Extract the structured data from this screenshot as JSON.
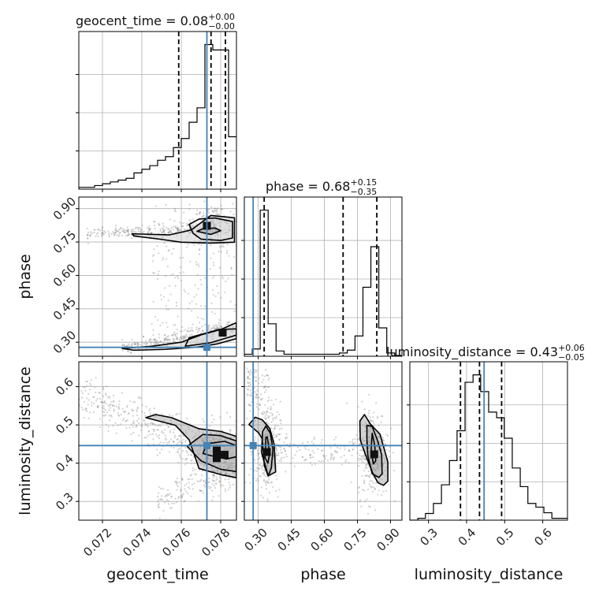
{
  "chart_data": {
    "type": "corner",
    "parameters": [
      "geocent_time",
      "phase",
      "luminosity_distance"
    ],
    "axis_labels": {
      "geocent_time": "geocent_time",
      "phase": "phase",
      "luminosity_distance": "luminosity_distance"
    },
    "ranges": {
      "geocent_time": [
        0.0708,
        0.0788
      ],
      "phase": [
        0.237,
        0.952
      ],
      "luminosity_distance": [
        0.251,
        0.665
      ]
    },
    "ticks": {
      "geocent_time": {
        "values": [
          0.072,
          0.074,
          0.076,
          0.078
        ],
        "labels": [
          "0.072",
          "0.074",
          "0.076",
          "0.078"
        ]
      },
      "phase": {
        "values": [
          0.3,
          0.45,
          0.6,
          0.75,
          0.9
        ],
        "labels": [
          "0.30",
          "0.45",
          "0.60",
          "0.75",
          "0.90"
        ]
      },
      "luminosity_distance": {
        "values": [
          0.3,
          0.4,
          0.5,
          0.6
        ],
        "labels": [
          "0.3",
          "0.4",
          "0.5",
          "0.6"
        ]
      }
    },
    "titles": [
      {
        "param": "geocent_time",
        "text": "geocent_time = 0.08",
        "plus": "+0.00",
        "minus": "−0.00"
      },
      {
        "param": "phase",
        "text": "phase = 0.68",
        "plus": "+0.15",
        "minus": "−0.35"
      },
      {
        "param": "luminosity_distance",
        "text": "luminosity_distance = 0.43",
        "plus": "+0.06",
        "minus": "−0.05"
      }
    ],
    "truths": {
      "geocent_time": 0.0773,
      "phase": 0.277,
      "luminosity_distance": 0.446
    },
    "quantiles": {
      "geocent_time": [
        0.07587,
        0.07751,
        0.07824
      ],
      "phase": [
        0.327,
        0.685,
        0.838
      ],
      "luminosity_distance": [
        0.384,
        0.434,
        0.492
      ]
    },
    "histograms": {
      "geocent_time": {
        "edges": [
          0.0708,
          0.0712,
          0.0716,
          0.072,
          0.0724,
          0.0728,
          0.0732,
          0.0736,
          0.074,
          0.0744,
          0.0748,
          0.0752,
          0.0756,
          0.076,
          0.0764,
          0.0768,
          0.0772,
          0.0776,
          0.078,
          0.0784,
          0.0788
        ],
        "counts": [
          0.5,
          0.5,
          1,
          1.5,
          2,
          2.5,
          3,
          4.5,
          5.5,
          6.5,
          8,
          9,
          11.5,
          14,
          18.5,
          22.5,
          40,
          38.5,
          38.5,
          14.5
        ]
      },
      "phase": {
        "edges": [
          0.237,
          0.273,
          0.309,
          0.345,
          0.381,
          0.417,
          0.453,
          0.489,
          0.524,
          0.56,
          0.596,
          0.632,
          0.668,
          0.704,
          0.739,
          0.775,
          0.811,
          0.847,
          0.883,
          0.919,
          0.952
        ],
        "counts": [
          0.5,
          1.8,
          36,
          8,
          1.3,
          0.5,
          0.5,
          0.5,
          0.5,
          0.5,
          0.5,
          0.5,
          0.8,
          1.5,
          5,
          17,
          27,
          7,
          0.8,
          0.2
        ]
      },
      "luminosity_distance": {
        "edges": [
          0.251,
          0.272,
          0.292,
          0.313,
          0.334,
          0.355,
          0.375,
          0.396,
          0.417,
          0.437,
          0.458,
          0.479,
          0.499,
          0.52,
          0.541,
          0.561,
          0.582,
          0.603,
          0.624,
          0.644,
          0.665
        ],
        "counts": [
          0,
          0.5,
          1.8,
          4.5,
          9.5,
          16,
          24,
          37,
          39,
          34.5,
          29,
          27.5,
          22,
          14,
          9,
          4.5,
          3.5,
          2,
          0.5,
          0.5
        ]
      }
    },
    "contours_2d": [
      {
        "x": "geocent_time",
        "y": "phase",
        "levels": [
          [
            [
              0.0764,
              0.829
            ],
            [
              0.0769,
              0.853
            ],
            [
              0.0777,
              0.858
            ],
            [
              0.0786,
              0.842
            ],
            [
              0.0786,
              0.768
            ],
            [
              0.078,
              0.757
            ],
            [
              0.077,
              0.763
            ],
            [
              0.0766,
              0.789
            ]
          ],
          [
            [
              0.0754,
              0.782
            ],
            [
              0.0765,
              0.804
            ],
            [
              0.0775,
              0.869
            ],
            [
              0.0787,
              0.859
            ],
            [
              0.0787,
              0.749
            ],
            [
              0.0775,
              0.745
            ],
            [
              0.076,
              0.749
            ],
            [
              0.0748,
              0.764
            ],
            [
              0.0736,
              0.777
            ],
            [
              0.0735,
              0.787
            ]
          ],
          [
            [
              0.0768,
              0.798
            ],
            [
              0.0771,
              0.81
            ],
            [
              0.0777,
              0.813
            ],
            [
              0.078,
              0.801
            ],
            [
              0.0775,
              0.784
            ]
          ],
          [
            [
              0.0762,
              0.282
            ],
            [
              0.0775,
              0.298
            ],
            [
              0.0788,
              0.332
            ],
            [
              0.0788,
              0.36
            ],
            [
              0.0779,
              0.357
            ],
            [
              0.0764,
              0.32
            ]
          ],
          [
            [
              0.073,
              0.272
            ],
            [
              0.0745,
              0.282
            ],
            [
              0.076,
              0.3
            ],
            [
              0.077,
              0.333
            ],
            [
              0.078,
              0.357
            ],
            [
              0.0788,
              0.388
            ],
            [
              0.0788,
              0.316
            ],
            [
              0.0778,
              0.292
            ],
            [
              0.0768,
              0.278
            ],
            [
              0.0752,
              0.268
            ],
            [
              0.0736,
              0.264
            ]
          ]
        ],
        "dense_cells": [
          [
            0.0773,
            0.823
          ],
          [
            0.0781,
            0.343
          ]
        ]
      },
      {
        "x": "geocent_time",
        "y": "luminosity_distance",
        "levels": [
          [
            [
              0.0771,
              0.425
            ],
            [
              0.0778,
              0.416
            ],
            [
              0.0783,
              0.411
            ],
            [
              0.0788,
              0.417
            ],
            [
              0.0788,
              0.446
            ],
            [
              0.0782,
              0.457
            ],
            [
              0.0773,
              0.451
            ]
          ],
          [
            [
              0.0763,
              0.444
            ],
            [
              0.077,
              0.406
            ],
            [
              0.078,
              0.384
            ],
            [
              0.0788,
              0.378
            ],
            [
              0.0788,
              0.458
            ],
            [
              0.078,
              0.472
            ],
            [
              0.0771,
              0.475
            ]
          ],
          [
            [
              0.0742,
              0.519
            ],
            [
              0.0757,
              0.499
            ],
            [
              0.0764,
              0.461
            ],
            [
              0.0769,
              0.386
            ],
            [
              0.0781,
              0.369
            ],
            [
              0.0788,
              0.362
            ],
            [
              0.0788,
              0.47
            ],
            [
              0.078,
              0.483
            ],
            [
              0.0769,
              0.49
            ],
            [
              0.0755,
              0.519
            ],
            [
              0.0747,
              0.527
            ]
          ]
        ],
        "dense_cells": [
          [
            0.0778,
            0.433
          ],
          [
            0.0778,
            0.413
          ],
          [
            0.0782,
            0.422
          ]
        ]
      },
      {
        "x": "phase",
        "y": "luminosity_distance",
        "levels": [
          [
            [
              0.331,
              0.414
            ],
            [
              0.335,
              0.468
            ],
            [
              0.341,
              0.469
            ],
            [
              0.348,
              0.441
            ],
            [
              0.351,
              0.423
            ],
            [
              0.344,
              0.4
            ]
          ],
          [
            [
              0.315,
              0.428
            ],
            [
              0.32,
              0.483
            ],
            [
              0.335,
              0.497
            ],
            [
              0.355,
              0.478
            ],
            [
              0.367,
              0.436
            ],
            [
              0.359,
              0.386
            ],
            [
              0.345,
              0.367
            ]
          ],
          [
            [
              0.258,
              0.501
            ],
            [
              0.302,
              0.479
            ],
            [
              0.318,
              0.464
            ],
            [
              0.328,
              0.393
            ],
            [
              0.345,
              0.367
            ],
            [
              0.379,
              0.377
            ],
            [
              0.372,
              0.45
            ],
            [
              0.352,
              0.491
            ],
            [
              0.319,
              0.513
            ],
            [
              0.286,
              0.52
            ]
          ],
          [
            [
              0.817,
              0.478
            ],
            [
              0.828,
              0.448
            ],
            [
              0.832,
              0.422
            ],
            [
              0.833,
              0.406
            ],
            [
              0.822,
              0.398
            ],
            [
              0.812,
              0.435
            ]
          ],
          [
            [
              0.793,
              0.499
            ],
            [
              0.817,
              0.496
            ],
            [
              0.842,
              0.458
            ],
            [
              0.86,
              0.422
            ],
            [
              0.862,
              0.372
            ],
            [
              0.847,
              0.363
            ],
            [
              0.817,
              0.372
            ],
            [
              0.797,
              0.42
            ],
            [
              0.793,
              0.465
            ]
          ],
          [
            [
              0.782,
              0.527
            ],
            [
              0.808,
              0.503
            ],
            [
              0.853,
              0.475
            ],
            [
              0.888,
              0.403
            ],
            [
              0.888,
              0.353
            ],
            [
              0.868,
              0.342
            ],
            [
              0.843,
              0.349
            ],
            [
              0.82,
              0.373
            ],
            [
              0.788,
              0.42
            ],
            [
              0.763,
              0.46
            ],
            [
              0.761,
              0.51
            ]
          ]
        ],
        "dense_cells": [
          [
            0.339,
            0.429
          ],
          [
            0.826,
            0.423
          ]
        ]
      }
    ]
  }
}
